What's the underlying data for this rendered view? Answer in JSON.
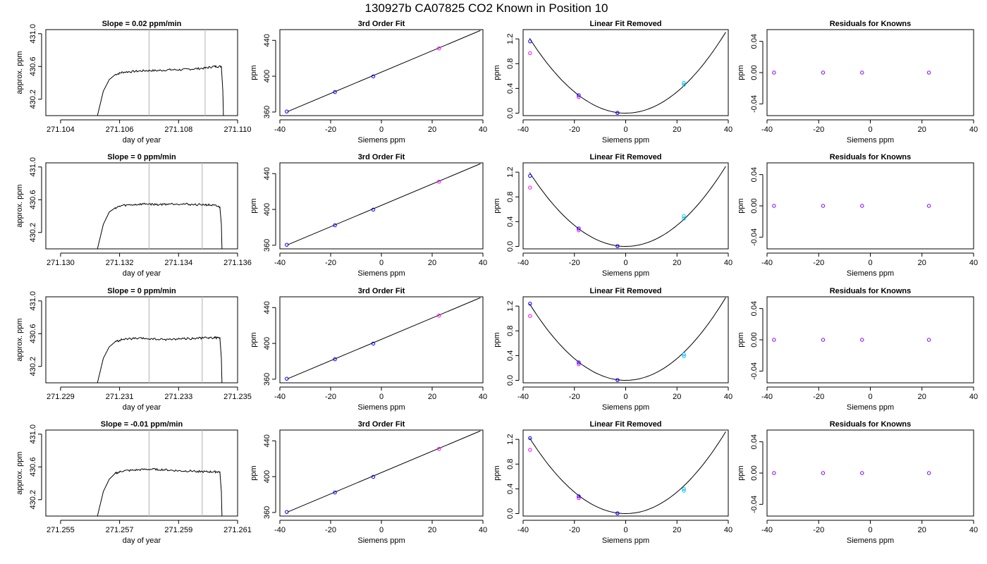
{
  "title": "130927b     CA07825   CO2 Known in Position  10",
  "colors": {
    "trace": "#000000",
    "window": "#bdbdbd",
    "blue": "#0000ff",
    "magenta": "#ff00ff",
    "cyan": "#00bfff",
    "purple": "#7f00ff"
  },
  "chart_data": [
    {
      "type": "line",
      "row": 0,
      "title": "Slope =  0.02  ppm/min",
      "xlabel": "day of year",
      "ylabel": "approx. ppm",
      "xlim": [
        271.1035,
        271.11
      ],
      "ylim": [
        430.0,
        431.05
      ],
      "xticks": [
        "271.104",
        "271.106",
        "271.108",
        "271.110"
      ],
      "xtick_values": [
        271.104,
        271.106,
        271.108,
        271.11
      ],
      "yticks": [
        "430.2",
        "430.6",
        "431.0"
      ],
      "ytick_values": [
        430.2,
        430.6,
        431.0
      ],
      "window": [
        271.107,
        271.1089
      ],
      "x": [
        271.10525,
        271.10545,
        271.10565,
        271.10585,
        271.1061,
        271.1065,
        271.1069,
        271.1073,
        271.1077,
        271.1081,
        271.1085,
        271.1089,
        271.1092,
        271.10945,
        271.1095,
        271.10952
      ],
      "y": [
        430.0,
        430.3,
        430.44,
        430.5,
        430.53,
        430.54,
        430.55,
        430.55,
        430.56,
        430.56,
        430.57,
        430.58,
        430.6,
        430.6,
        430.3,
        430.0
      ]
    },
    {
      "type": "scatter",
      "row": 0,
      "title": "3rd Order Fit",
      "xlabel": "Siemens ppm",
      "ylabel": "ppm",
      "xlim": [
        -40,
        40
      ],
      "ylim": [
        356,
        452
      ],
      "xticks": [
        "-40",
        "-20",
        "0",
        "20",
        "40"
      ],
      "xtick_values": [
        -40,
        -20,
        0,
        20,
        40
      ],
      "yticks": [
        "360",
        "400",
        "440"
      ],
      "ytick_values": [
        360,
        400,
        440
      ],
      "line": {
        "x": [
          -37,
          39
        ],
        "y": [
          360.5,
          451
        ]
      },
      "points_blue": {
        "x": [
          -37.3,
          -18.3,
          -3.2
        ],
        "y": [
          360.6,
          382.3,
          399.8
        ]
      },
      "points_magenta": {
        "x": [
          22.7
        ],
        "y": [
          431
        ]
      }
    },
    {
      "type": "scatter",
      "row": 0,
      "title": "Linear Fit Removed",
      "xlabel": "Siemens ppm",
      "ylabel": "ppm",
      "xlim": [
        -40,
        40
      ],
      "ylim": [
        -0.04,
        1.35
      ],
      "xticks": [
        "-40",
        "-20",
        "0",
        "20",
        "40"
      ],
      "xtick_values": [
        -40,
        -20,
        0,
        20,
        40
      ],
      "yticks": [
        "0.0",
        "0.4",
        "0.8",
        "1.2"
      ],
      "ytick_values": [
        0,
        0.4,
        0.8,
        1.2
      ],
      "curve": {
        "vertex": 0,
        "a": 0.00086,
        "xmin": -37.5,
        "xmax": 39
      },
      "points_blue": {
        "x": [
          -37.3,
          -18.3,
          -3.2
        ],
        "y": [
          1.16,
          0.29,
          0.005
        ]
      },
      "points_magenta": {
        "x": [
          -37.3,
          -18.3,
          -3.2
        ],
        "y": [
          0.97,
          0.26,
          0.005
        ]
      },
      "points_cyan": {
        "x": [
          22.7,
          22.7
        ],
        "y": [
          0.49,
          0.46
        ]
      }
    },
    {
      "type": "scatter",
      "row": 0,
      "title": "Residuals for Knowns",
      "xlabel": "Siemens ppm",
      "ylabel": "ppm",
      "xlim": [
        -40,
        40
      ],
      "ylim": [
        -0.055,
        0.055
      ],
      "xticks": [
        "-40",
        "-20",
        "0",
        "20",
        "40"
      ],
      "xtick_values": [
        -40,
        -20,
        0,
        20,
        40
      ],
      "yticks": [
        "-0.04",
        "0.00",
        "0.04"
      ],
      "ytick_values": [
        -0.04,
        0,
        0.04
      ],
      "points_purple": {
        "x": [
          -37.3,
          -18.3,
          -3.2,
          22.7
        ],
        "y": [
          0,
          0,
          0,
          0
        ]
      }
    },
    {
      "type": "line",
      "row": 1,
      "title": "Slope =  0  ppm/min",
      "xlabel": "day of year",
      "ylabel": "approx. ppm",
      "xlim": [
        271.1295,
        271.136
      ],
      "ylim": [
        430.0,
        431.05
      ],
      "xticks": [
        "271.130",
        "271.132",
        "271.134",
        "271.136"
      ],
      "xtick_values": [
        271.13,
        271.132,
        271.134,
        271.136
      ],
      "yticks": [
        "430.2",
        "430.6",
        "431.0"
      ],
      "ytick_values": [
        430.2,
        430.6,
        431.0
      ],
      "window": [
        271.133,
        271.1348
      ],
      "x": [
        271.13125,
        271.13145,
        271.13165,
        271.13185,
        271.1321,
        271.1325,
        271.1329,
        271.1333,
        271.1337,
        271.1341,
        271.1345,
        271.1349,
        271.1352,
        271.1354,
        271.13545,
        271.13547
      ],
      "y": [
        430.0,
        430.3,
        430.45,
        430.5,
        430.53,
        430.54,
        430.55,
        430.54,
        430.55,
        430.55,
        430.54,
        430.54,
        430.53,
        430.51,
        430.3,
        430.0
      ]
    },
    {
      "type": "scatter",
      "row": 1,
      "title": "3rd Order Fit",
      "xlabel": "Siemens ppm",
      "ylabel": "ppm",
      "xlim": [
        -40,
        40
      ],
      "ylim": [
        356,
        452
      ],
      "xticks": [
        "-40",
        "-20",
        "0",
        "20",
        "40"
      ],
      "xtick_values": [
        -40,
        -20,
        0,
        20,
        40
      ],
      "yticks": [
        "360",
        "400",
        "440"
      ],
      "ytick_values": [
        360,
        400,
        440
      ],
      "line": {
        "x": [
          -37,
          39
        ],
        "y": [
          360.5,
          451
        ]
      },
      "points_blue": {
        "x": [
          -37.3,
          -18.3,
          -3.2
        ],
        "y": [
          360.6,
          382.3,
          399.8
        ]
      },
      "points_magenta": {
        "x": [
          22.7
        ],
        "y": [
          431
        ]
      }
    },
    {
      "type": "scatter",
      "row": 1,
      "title": "Linear Fit Removed",
      "xlabel": "Siemens ppm",
      "ylabel": "ppm",
      "xlim": [
        -40,
        40
      ],
      "ylim": [
        -0.04,
        1.35
      ],
      "xticks": [
        "-40",
        "-20",
        "0",
        "20",
        "40"
      ],
      "xtick_values": [
        -40,
        -20,
        0,
        20,
        40
      ],
      "yticks": [
        "0.0",
        "0.4",
        "0.8",
        "1.2"
      ],
      "ytick_values": [
        0,
        0.4,
        0.8,
        1.2
      ],
      "curve": {
        "vertex": 0,
        "a": 0.00085,
        "xmin": -37.5,
        "xmax": 39
      },
      "points_blue": {
        "x": [
          -37.3,
          -18.3,
          -3.2
        ],
        "y": [
          1.14,
          0.29,
          0.005
        ]
      },
      "points_magenta": {
        "x": [
          -37.3,
          -18.3,
          -3.2
        ],
        "y": [
          0.95,
          0.26,
          0.005
        ]
      },
      "points_cyan": {
        "x": [
          22.7,
          22.7
        ],
        "y": [
          0.49,
          0.45
        ]
      }
    },
    {
      "type": "scatter",
      "row": 1,
      "title": "Residuals for Knowns",
      "xlabel": "Siemens ppm",
      "ylabel": "ppm",
      "xlim": [
        -40,
        40
      ],
      "ylim": [
        -0.055,
        0.055
      ],
      "xticks": [
        "-40",
        "-20",
        "0",
        "20",
        "40"
      ],
      "xtick_values": [
        -40,
        -20,
        0,
        20,
        40
      ],
      "yticks": [
        "-0.04",
        "0.00",
        "0.04"
      ],
      "ytick_values": [
        -0.04,
        0,
        0.04
      ],
      "points_purple": {
        "x": [
          -37.3,
          -18.3,
          -3.2,
          22.7
        ],
        "y": [
          0,
          0,
          0,
          0
        ]
      }
    },
    {
      "type": "line",
      "row": 2,
      "title": "Slope =  0  ppm/min",
      "xlabel": "day of year",
      "ylabel": "approx. ppm",
      "xlim": [
        271.2285,
        271.235
      ],
      "ylim": [
        430.0,
        431.05
      ],
      "xticks": [
        "271.229",
        "271.231",
        "271.233",
        "271.235"
      ],
      "xtick_values": [
        271.229,
        271.231,
        271.233,
        271.235
      ],
      "yticks": [
        "430.2",
        "430.6",
        "431.0"
      ],
      "ytick_values": [
        430.2,
        430.6,
        431.0
      ],
      "window": [
        271.232,
        271.2338
      ],
      "x": [
        271.23025,
        271.23045,
        271.23065,
        271.23085,
        271.2311,
        271.2315,
        271.2319,
        271.2323,
        271.2327,
        271.2331,
        271.2335,
        271.2339,
        271.2342,
        271.2344,
        271.23445,
        271.23447
      ],
      "y": [
        430.0,
        430.3,
        430.44,
        430.5,
        430.53,
        430.54,
        430.54,
        430.53,
        430.53,
        430.54,
        430.54,
        430.55,
        430.55,
        430.55,
        430.3,
        430.0
      ]
    },
    {
      "type": "scatter",
      "row": 2,
      "title": "3rd Order Fit",
      "xlabel": "Siemens ppm",
      "ylabel": "ppm",
      "xlim": [
        -40,
        40
      ],
      "ylim": [
        356,
        452
      ],
      "xticks": [
        "-40",
        "-20",
        "0",
        "20",
        "40"
      ],
      "xtick_values": [
        -40,
        -20,
        0,
        20,
        40
      ],
      "yticks": [
        "360",
        "400",
        "440"
      ],
      "ytick_values": [
        360,
        400,
        440
      ],
      "line": {
        "x": [
          -37,
          39
        ],
        "y": [
          360.5,
          451
        ]
      },
      "points_blue": {
        "x": [
          -37.3,
          -18.3,
          -3.2
        ],
        "y": [
          360.6,
          382.3,
          399.8
        ]
      },
      "points_magenta": {
        "x": [
          22.7
        ],
        "y": [
          431
        ]
      }
    },
    {
      "type": "scatter",
      "row": 2,
      "title": "Linear Fit Removed",
      "xlabel": "Siemens ppm",
      "ylabel": "ppm",
      "xlim": [
        -40,
        40
      ],
      "ylim": [
        -0.04,
        1.35
      ],
      "xticks": [
        "-40",
        "-20",
        "0",
        "20",
        "40"
      ],
      "xtick_values": [
        -40,
        -20,
        0,
        20,
        40
      ],
      "yticks": [
        "0.0",
        "0.4",
        "0.8",
        "1.2"
      ],
      "ytick_values": [
        0,
        0.4,
        0.8,
        1.2
      ],
      "curve": {
        "vertex": 0,
        "a": 0.00088,
        "xmin": -37.5,
        "xmax": 39
      },
      "points_blue": {
        "x": [
          -37.3,
          -18.3,
          -3.2
        ],
        "y": [
          1.24,
          0.29,
          0.005
        ]
      },
      "points_magenta": {
        "x": [
          -37.3,
          -18.3,
          -3.2
        ],
        "y": [
          1.04,
          0.26,
          0.005
        ]
      },
      "points_cyan": {
        "x": [
          22.7,
          22.7
        ],
        "y": [
          0.42,
          0.39
        ]
      }
    },
    {
      "type": "scatter",
      "row": 2,
      "title": "Residuals for Knowns",
      "xlabel": "Siemens ppm",
      "ylabel": "ppm",
      "xlim": [
        -40,
        40
      ],
      "ylim": [
        -0.055,
        0.055
      ],
      "xticks": [
        "-40",
        "-20",
        "0",
        "20",
        "40"
      ],
      "xtick_values": [
        -40,
        -20,
        0,
        20,
        40
      ],
      "yticks": [
        "-0.04",
        "0.00",
        "0.04"
      ],
      "ytick_values": [
        -0.04,
        0,
        0.04
      ],
      "points_purple": {
        "x": [
          -37.3,
          -18.3,
          -3.2,
          22.7
        ],
        "y": [
          0,
          0,
          0,
          0
        ]
      }
    },
    {
      "type": "line",
      "row": 3,
      "title": "Slope =  -0.01  ppm/min",
      "xlabel": "day of year",
      "ylabel": "approx. ppm",
      "xlim": [
        271.2545,
        271.261
      ],
      "ylim": [
        430.0,
        431.05
      ],
      "xticks": [
        "271.255",
        "271.257",
        "271.259",
        "271.261"
      ],
      "xtick_values": [
        271.255,
        271.257,
        271.259,
        271.261
      ],
      "yticks": [
        "430.2",
        "430.6",
        "431.0"
      ],
      "ytick_values": [
        430.2,
        430.6,
        431.0
      ],
      "window": [
        271.258,
        271.2598
      ],
      "x": [
        271.25625,
        271.25645,
        271.25665,
        271.25685,
        271.2571,
        271.2575,
        271.2579,
        271.2583,
        271.2587,
        271.2591,
        271.2595,
        271.2599,
        271.2602,
        271.2604,
        271.26045,
        271.26047
      ],
      "y": [
        430.0,
        430.3,
        430.45,
        430.52,
        430.55,
        430.56,
        430.57,
        430.57,
        430.56,
        430.55,
        430.55,
        430.54,
        430.54,
        430.54,
        430.3,
        430.0
      ]
    },
    {
      "type": "scatter",
      "row": 3,
      "title": "3rd Order Fit",
      "xlabel": "Siemens ppm",
      "ylabel": "ppm",
      "xlim": [
        -40,
        40
      ],
      "ylim": [
        356,
        452
      ],
      "xticks": [
        "-40",
        "-20",
        "0",
        "20",
        "40"
      ],
      "xtick_values": [
        -40,
        -20,
        0,
        20,
        40
      ],
      "yticks": [
        "360",
        "400",
        "440"
      ],
      "ytick_values": [
        360,
        400,
        440
      ],
      "line": {
        "x": [
          -37,
          39
        ],
        "y": [
          360.5,
          451
        ]
      },
      "points_blue": {
        "x": [
          -37.3,
          -18.3,
          -3.2
        ],
        "y": [
          360.6,
          382.3,
          399.8
        ]
      },
      "points_magenta": {
        "x": [
          22.7
        ],
        "y": [
          431
        ]
      }
    },
    {
      "type": "scatter",
      "row": 3,
      "title": "Linear Fit Removed",
      "xlabel": "Siemens ppm",
      "ylabel": "ppm",
      "xlim": [
        -40,
        40
      ],
      "ylim": [
        -0.04,
        1.35
      ],
      "xticks": [
        "-40",
        "-20",
        "0",
        "20",
        "40"
      ],
      "xtick_values": [
        -40,
        -20,
        0,
        20,
        40
      ],
      "yticks": [
        "0.0",
        "0.4",
        "0.8",
        "1.2"
      ],
      "ytick_values": [
        0,
        0.4,
        0.8,
        1.2
      ],
      "curve": {
        "vertex": 0,
        "a": 0.00087,
        "xmin": -37.5,
        "xmax": 39
      },
      "points_blue": {
        "x": [
          -37.3,
          -18.3,
          -3.2
        ],
        "y": [
          1.22,
          0.28,
          0.005
        ]
      },
      "points_magenta": {
        "x": [
          -37.3,
          -18.3,
          -3.2
        ],
        "y": [
          1.03,
          0.25,
          0.005
        ]
      },
      "points_cyan": {
        "x": [
          22.7,
          22.7
        ],
        "y": [
          0.4,
          0.37
        ]
      }
    },
    {
      "type": "scatter",
      "row": 3,
      "title": "Residuals for Knowns",
      "xlabel": "Siemens ppm",
      "ylabel": "ppm",
      "xlim": [
        -40,
        40
      ],
      "ylim": [
        -0.055,
        0.055
      ],
      "xticks": [
        "-40",
        "-20",
        "0",
        "20",
        "40"
      ],
      "xtick_values": [
        -40,
        -20,
        0,
        20,
        40
      ],
      "yticks": [
        "-0.04",
        "0.00",
        "0.04"
      ],
      "ytick_values": [
        -0.04,
        0,
        0.04
      ],
      "points_purple": {
        "x": [
          -37.3,
          -18.3,
          -3.2,
          22.7
        ],
        "y": [
          0,
          0,
          0,
          0
        ]
      }
    }
  ]
}
